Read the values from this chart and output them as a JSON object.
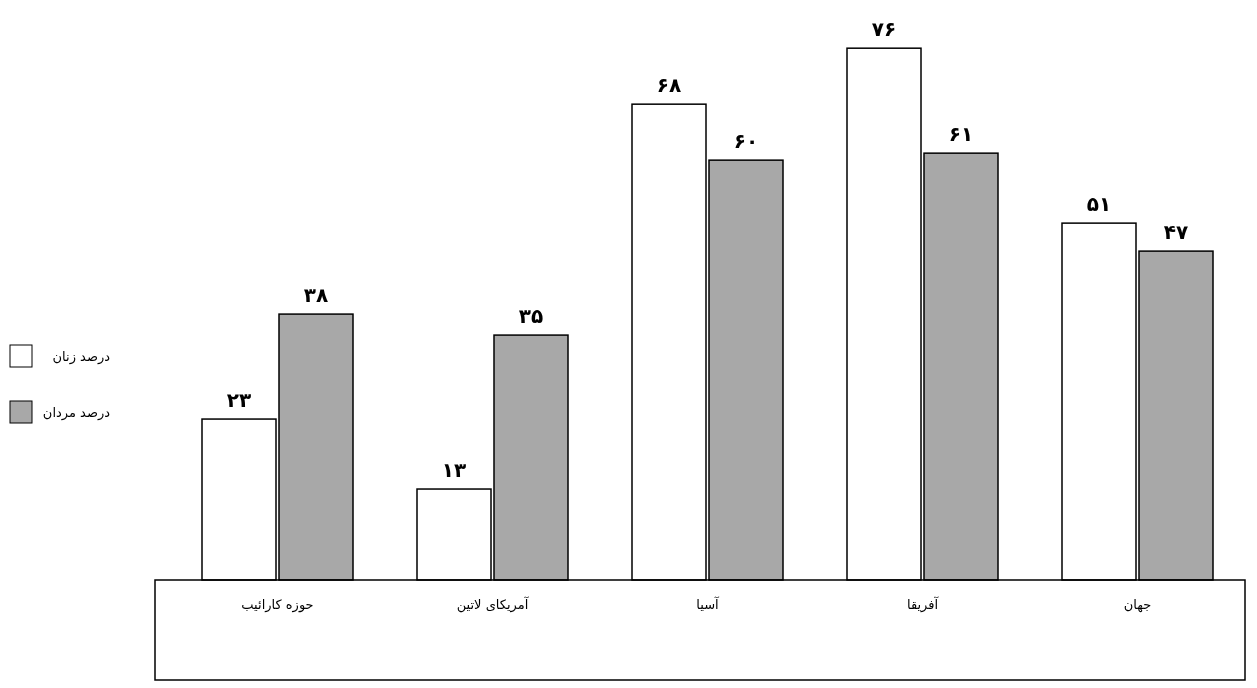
{
  "chart_data": {
    "type": "bar",
    "categories": [
      "حوزه کارائیب",
      "آمریکای لاتین",
      "آسیا",
      "آفریقا",
      "جهان"
    ],
    "series": [
      {
        "name": "درصد زنان",
        "color": "#ffffff",
        "values": [
          23,
          13,
          68,
          76,
          51
        ],
        "value_labels": [
          "۲۳",
          "۱۳",
          "۶۸",
          "۷۶",
          "۵۱"
        ]
      },
      {
        "name": "درصد مردان",
        "color": "#a8a8a8",
        "values": [
          38,
          35,
          60,
          61,
          47
        ],
        "value_labels": [
          "۳۸",
          "۳۵",
          "۶۰",
          "۶۱",
          "۴۷"
        ]
      }
    ],
    "legend": "left",
    "grid": false
  }
}
